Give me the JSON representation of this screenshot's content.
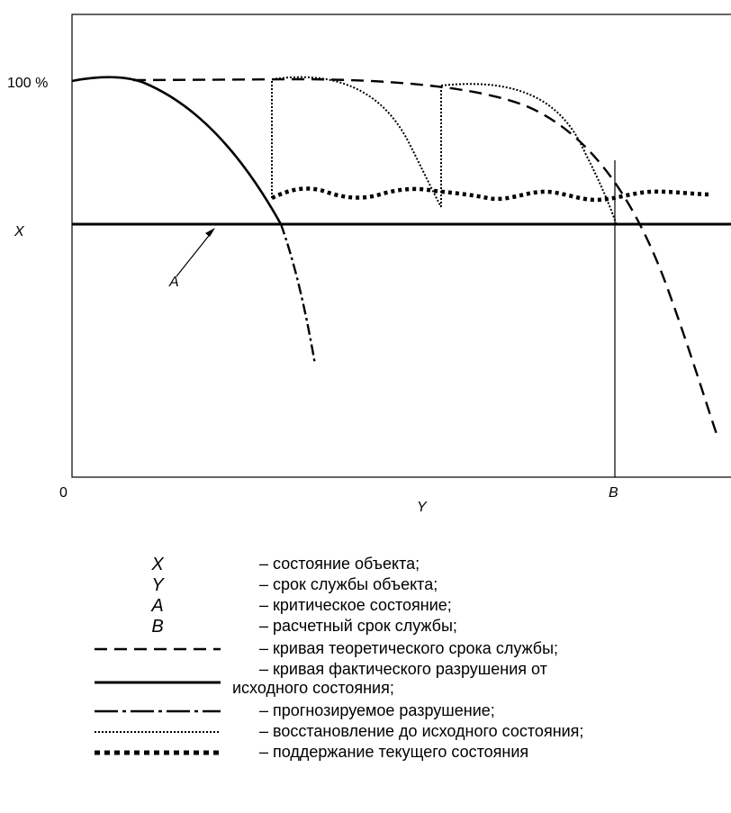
{
  "axes": {
    "y_tick_label": "100 %",
    "origin_label": "0",
    "x_axis_label": "Y",
    "y_axis_label": "X",
    "critical_label": "A",
    "design_life_label": "B"
  },
  "legend": [
    {
      "symbol": "X",
      "text": "– состояние объекта;"
    },
    {
      "symbol": "Y",
      "text": "– срок службы объекта;"
    },
    {
      "symbol": "A",
      "text": "– критическое состояние;"
    },
    {
      "symbol": "B",
      "text": "– расчетный срок службы;"
    },
    {
      "symbol": "dashed-line",
      "text": "– кривая теоретического срока службы;"
    },
    {
      "symbol": "solid-line",
      "text": "– кривая фактического разрушения от",
      "text2": "исходного состояния;"
    },
    {
      "symbol": "dash-dot-line",
      "text": "– прогнозируемое разрушение;"
    },
    {
      "symbol": "dotted-line",
      "text": "– восстановление до исходного состояния;"
    },
    {
      "symbol": "square-dot-line",
      "text": "– поддержание текущего состояния"
    }
  ]
}
